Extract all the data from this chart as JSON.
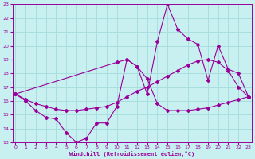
{
  "xlabel": "Windchill (Refroidissement éolien,°C)",
  "bg_color": "#c8f0f0",
  "grid_color": "#a8dede",
  "line_color": "#990099",
  "xmin": 0,
  "xmax": 23,
  "ymin": 13,
  "ymax": 23,
  "yticks": [
    13,
    14,
    15,
    16,
    17,
    18,
    19,
    20,
    21,
    22,
    23
  ],
  "xticks": [
    0,
    1,
    2,
    3,
    4,
    5,
    6,
    7,
    8,
    9,
    10,
    11,
    12,
    13,
    14,
    15,
    16,
    17,
    18,
    19,
    20,
    21,
    22,
    23
  ],
  "line1_x": [
    0,
    1,
    2,
    3,
    4,
    5,
    6,
    7,
    8,
    9,
    10,
    11,
    12,
    13,
    14,
    15,
    16,
    17,
    18,
    19,
    20,
    21,
    22,
    23
  ],
  "line1_y": [
    16.5,
    16.0,
    15.3,
    14.8,
    14.7,
    13.7,
    13.0,
    13.3,
    14.4,
    14.4,
    15.6,
    19.0,
    18.5,
    17.6,
    15.8,
    15.3,
    15.3,
    15.3,
    15.4,
    15.5,
    15.7,
    15.9,
    16.1,
    16.3
  ],
  "line2_x": [
    0,
    1,
    2,
    3,
    4,
    5,
    6,
    7,
    8,
    9,
    10,
    11,
    12,
    13,
    14,
    15,
    16,
    17,
    18,
    19,
    20,
    21,
    22,
    23
  ],
  "line2_y": [
    16.5,
    16.1,
    15.8,
    15.6,
    15.4,
    15.3,
    15.3,
    15.4,
    15.5,
    15.6,
    15.9,
    16.3,
    16.7,
    17.0,
    17.4,
    17.8,
    18.2,
    18.6,
    18.9,
    19.0,
    18.8,
    18.2,
    17.0,
    16.3
  ],
  "line3_x": [
    0,
    10,
    11,
    12,
    13,
    14,
    15,
    16,
    17,
    18,
    19,
    20,
    21,
    22,
    23
  ],
  "line3_y": [
    16.5,
    18.8,
    19.0,
    18.5,
    16.5,
    20.3,
    23.0,
    21.2,
    20.5,
    20.1,
    17.5,
    20.0,
    18.3,
    18.0,
    16.3
  ]
}
